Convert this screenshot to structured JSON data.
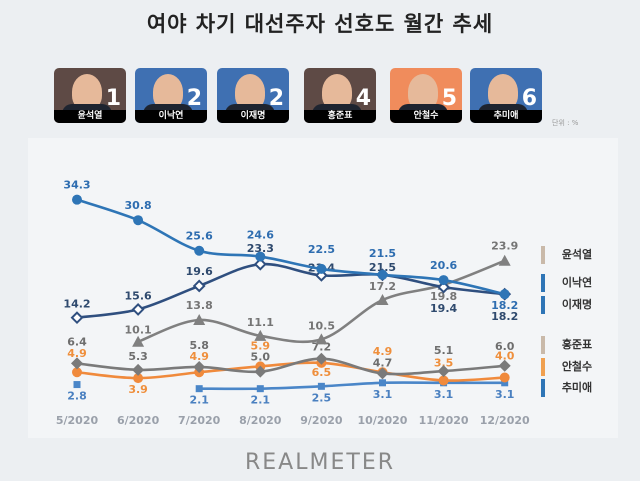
{
  "title": "여야 차기 대선주자 선호도 월간 추세",
  "candidates": [
    {
      "name": "윤석열",
      "rank": "1",
      "color": "#5e4a45"
    },
    {
      "name": "이낙연",
      "rank": "2",
      "color": "#3f70b2"
    },
    {
      "name": "이재명",
      "rank": "2",
      "color": "#3f70b2"
    },
    {
      "name": "홍준표",
      "rank": "4",
      "color": "#5e4a45"
    },
    {
      "name": "안철수",
      "rank": "5",
      "color": "#f08c5c"
    },
    {
      "name": "추미애",
      "rank": "6",
      "color": "#3f70b2"
    }
  ],
  "unit": "단위 : %",
  "footer": "REALMETER",
  "chart_data": {
    "type": "line",
    "x": [
      "5/2020",
      "6/2020",
      "7/2020",
      "8/2020",
      "9/2020",
      "10/2020",
      "11/2020",
      "12/2020"
    ],
    "ylim": [
      0,
      35
    ],
    "grid": false,
    "legend": "right",
    "series": [
      {
        "name": "윤석열",
        "values": [
          null,
          10.1,
          13.8,
          11.1,
          10.5,
          17.2,
          19.8,
          23.9
        ],
        "color": "#808080",
        "label_color": "#757575",
        "marker": "triangle",
        "legend_color": "#c9b9a9"
      },
      {
        "name": "이낙연",
        "values": [
          34.3,
          30.8,
          25.6,
          24.6,
          22.5,
          21.5,
          20.6,
          18.2
        ],
        "color": "#2e75b6",
        "label_color": "#2e6db0",
        "marker": "circle",
        "legend_color": "#2e75b6"
      },
      {
        "name": "이재명",
        "values": [
          14.2,
          15.6,
          19.6,
          23.3,
          21.4,
          21.5,
          19.4,
          18.2
        ],
        "color": "#2f4f7f",
        "label_color": "#2f4a6e",
        "marker": "open-diamond",
        "legend_color": "#2e75b6"
      },
      {
        "name": "홍준표",
        "values": [
          6.4,
          5.3,
          5.8,
          5.0,
          7.2,
          4.7,
          5.1,
          6.0
        ],
        "color": "#7a7a7a",
        "label_color": "#6e6e6e",
        "marker": "diamond",
        "legend_color": "#c9b9a9"
      },
      {
        "name": "안철수",
        "values": [
          4.9,
          3.9,
          4.9,
          5.9,
          6.5,
          4.9,
          3.5,
          4.0
        ],
        "color": "#f08a3c",
        "label_color": "#ef8f3c",
        "marker": "circle",
        "legend_color": "#f0a050"
      },
      {
        "name": "추미애",
        "values": [
          2.8,
          null,
          2.1,
          2.1,
          2.5,
          3.1,
          3.1,
          3.1
        ],
        "color": "#4a86c8",
        "label_color": "#4a80c0",
        "marker": "square",
        "legend_color": "#2e75b6"
      }
    ]
  }
}
